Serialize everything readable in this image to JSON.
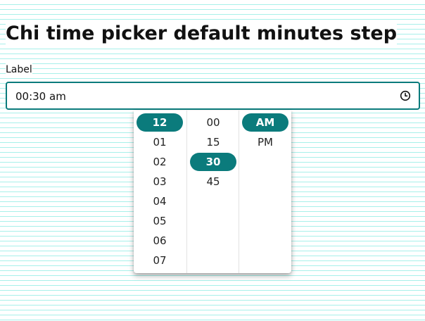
{
  "page": {
    "title": "Chi time picker default minutes step"
  },
  "field": {
    "label": "Label",
    "value": "00:30 am",
    "icon": "clock-icon"
  },
  "picker": {
    "hours": [
      "12",
      "01",
      "02",
      "03",
      "04",
      "05",
      "06",
      "07"
    ],
    "selected_hour": "12",
    "minutes": [
      "00",
      "15",
      "30",
      "45"
    ],
    "selected_minute": "30",
    "periods": [
      "AM",
      "PM"
    ],
    "selected_period": "AM"
  },
  "colors": {
    "accent": "#0b7b7c",
    "background_lines": "#a8f0ea"
  }
}
